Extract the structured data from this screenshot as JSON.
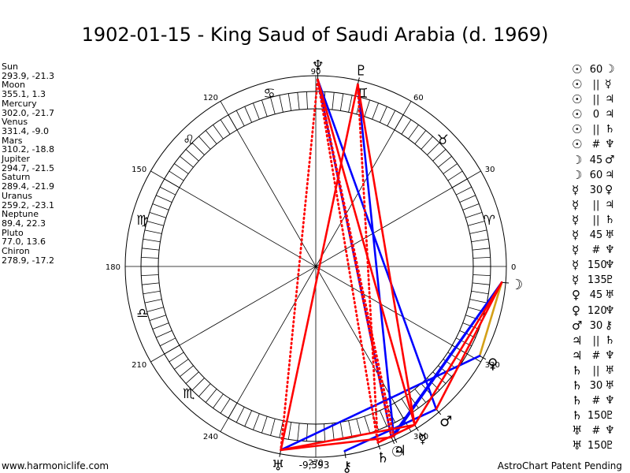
{
  "title": "1902-01-15 - King Saud of Saudi Arabia (d. 1969)",
  "footer_left": "www.harmoniclife.com",
  "footer_right": "AstroChart Patent Pending",
  "planets": [
    {
      "name": "Sun",
      "coords": "293.9, -21.3"
    },
    {
      "name": "Moon",
      "coords": "355.1, 1.3"
    },
    {
      "name": "Mercury",
      "coords": "302.0, -21.7"
    },
    {
      "name": "Venus",
      "coords": "331.4, -9.0"
    },
    {
      "name": "Mars",
      "coords": "310.2, -18.8"
    },
    {
      "name": "Jupiter",
      "coords": "294.7, -21.5"
    },
    {
      "name": "Saturn",
      "coords": "289.4, -21.9"
    },
    {
      "name": "Uranus",
      "coords": "259.2, -23.1"
    },
    {
      "name": "Neptune",
      "coords": "89.4, 22.3"
    },
    {
      "name": "Pluto",
      "coords": "77.0, 13.6"
    },
    {
      "name": "Chiron",
      "coords": "278.9, -17.2"
    }
  ],
  "aspects": [
    {
      "p1": "☉",
      "sym": "60",
      "p2": "☽"
    },
    {
      "p1": "☉",
      "sym": "||",
      "p2": "☿"
    },
    {
      "p1": "☉",
      "sym": "||",
      "p2": "♃"
    },
    {
      "p1": "☉",
      "sym": "0",
      "p2": "♃"
    },
    {
      "p1": "☉",
      "sym": "||",
      "p2": "♄"
    },
    {
      "p1": "☉",
      "sym": "#",
      "p2": "♆"
    },
    {
      "p1": "☽",
      "sym": "45",
      "p2": "♂"
    },
    {
      "p1": "☽",
      "sym": "60",
      "p2": "♃"
    },
    {
      "p1": "☿",
      "sym": "30",
      "p2": "♀"
    },
    {
      "p1": "☿",
      "sym": "||",
      "p2": "♃"
    },
    {
      "p1": "☿",
      "sym": "||",
      "p2": "♄"
    },
    {
      "p1": "☿",
      "sym": "45",
      "p2": "♅"
    },
    {
      "p1": "☿",
      "sym": "#",
      "p2": "♆"
    },
    {
      "p1": "☿",
      "sym": "150",
      "p2": "♆"
    },
    {
      "p1": "☿",
      "sym": "135",
      "p2": "♇"
    },
    {
      "p1": "♀",
      "sym": "45",
      "p2": "♅"
    },
    {
      "p1": "♀",
      "sym": "120",
      "p2": "♆"
    },
    {
      "p1": "♂",
      "sym": "30",
      "p2": "⚷"
    },
    {
      "p1": "♃",
      "sym": "||",
      "p2": "♄"
    },
    {
      "p1": "♃",
      "sym": "#",
      "p2": "♆"
    },
    {
      "p1": "♄",
      "sym": "||",
      "p2": "♅"
    },
    {
      "p1": "♄",
      "sym": "30",
      "p2": "♅"
    },
    {
      "p1": "♄",
      "sym": "#",
      "p2": "♆"
    },
    {
      "p1": "♄",
      "sym": "150",
      "p2": "♇"
    },
    {
      "p1": "♅",
      "sym": "#",
      "p2": "♆"
    },
    {
      "p1": "♅",
      "sym": "150",
      "p2": "♇"
    }
  ],
  "chart_data": {
    "type": "astrological-wheel",
    "title": "1902-01-15 - King Saud of Saudi Arabia (d. 1969)",
    "declination_value_label": "-9,593",
    "angle_labels": [
      {
        "deg": 0,
        "label": "0"
      },
      {
        "deg": 30,
        "label": "30"
      },
      {
        "deg": 60,
        "label": "60"
      },
      {
        "deg": 90,
        "label": "90"
      },
      {
        "deg": 120,
        "label": "120"
      },
      {
        "deg": 150,
        "label": "150"
      },
      {
        "deg": 180,
        "label": "180"
      },
      {
        "deg": 210,
        "label": "210"
      },
      {
        "deg": 240,
        "label": "240"
      },
      {
        "deg": 270,
        "label": "270"
      },
      {
        "deg": 300,
        "label": "300"
      },
      {
        "deg": 330,
        "label": "330"
      }
    ],
    "signs": [
      {
        "deg": 15,
        "glyph": "♈"
      },
      {
        "deg": 45,
        "glyph": "♉"
      },
      {
        "deg": 75,
        "glyph": "♊"
      },
      {
        "deg": 105,
        "glyph": "♋"
      },
      {
        "deg": 135,
        "glyph": "♌"
      },
      {
        "deg": 165,
        "glyph": "♍"
      },
      {
        "deg": 195,
        "glyph": "♎"
      },
      {
        "deg": 225,
        "glyph": "♏"
      }
    ],
    "bodies": [
      {
        "name": "Sun",
        "glyph": "☉",
        "lon": 293.9
      },
      {
        "name": "Moon",
        "glyph": "☽",
        "lon": 355.1
      },
      {
        "name": "Mercury",
        "glyph": "☿",
        "lon": 302.0
      },
      {
        "name": "Venus",
        "glyph": "♀",
        "lon": 331.4
      },
      {
        "name": "Mars",
        "glyph": "♂",
        "lon": 310.2
      },
      {
        "name": "Jupiter",
        "glyph": "♃",
        "lon": 294.7
      },
      {
        "name": "Saturn",
        "glyph": "♄",
        "lon": 289.4
      },
      {
        "name": "Uranus",
        "glyph": "♅",
        "lon": 259.2
      },
      {
        "name": "Neptune",
        "glyph": "♆",
        "lon": 89.4
      },
      {
        "name": "Pluto",
        "glyph": "♇",
        "lon": 77.0
      },
      {
        "name": "Chiron",
        "glyph": "⚷",
        "lon": 278.9
      }
    ],
    "aspect_lines": [
      {
        "from": "Moon",
        "to": "Venus",
        "color": "#d4a017",
        "style": "solid"
      },
      {
        "from": "Neptune",
        "to": "Sun",
        "color": "#0000ff",
        "style": "solid"
      },
      {
        "from": "Pluto",
        "to": "Jupiter",
        "color": "#0000ff",
        "style": "solid"
      },
      {
        "from": "Neptune",
        "to": "Mars",
        "color": "#0000ff",
        "style": "solid"
      },
      {
        "from": "Moon",
        "to": "Sun",
        "color": "#0000ff",
        "style": "solid"
      },
      {
        "from": "Moon",
        "to": "Jupiter",
        "color": "#0000ff",
        "style": "solid"
      },
      {
        "from": "Mars",
        "to": "Chiron",
        "color": "#0000ff",
        "style": "solid"
      },
      {
        "from": "Venus",
        "to": "Uranus",
        "color": "#0000ff",
        "style": "solid"
      },
      {
        "from": "Pluto",
        "to": "Mercury",
        "color": "#ff0000",
        "style": "solid"
      },
      {
        "from": "Pluto",
        "to": "Uranus",
        "color": "#ff0000",
        "style": "solid"
      },
      {
        "from": "Neptune",
        "to": "Mercury",
        "color": "#ff0000",
        "style": "solid"
      },
      {
        "from": "Uranus",
        "to": "Mercury",
        "color": "#ff0000",
        "style": "solid"
      },
      {
        "from": "Uranus",
        "to": "Sun",
        "color": "#ff0000",
        "style": "solid"
      },
      {
        "from": "Moon",
        "to": "Mars",
        "color": "#ff0000",
        "style": "solid"
      },
      {
        "from": "Mercury",
        "to": "Moon",
        "color": "#ff0000",
        "style": "solid"
      },
      {
        "from": "Saturn",
        "to": "Mercury",
        "color": "#ff0000",
        "style": "solid"
      },
      {
        "from": "Neptune",
        "to": "Saturn",
        "color": "#ff0000",
        "style": "dotted"
      },
      {
        "from": "Neptune",
        "to": "Jupiter",
        "color": "#ff0000",
        "style": "dotted"
      },
      {
        "from": "Neptune",
        "to": "Uranus",
        "color": "#ff0000",
        "style": "dotted"
      },
      {
        "from": "Neptune",
        "to": "Sun",
        "color": "#ff0000",
        "style": "dotted"
      },
      {
        "from": "Pluto",
        "to": "Saturn",
        "color": "#ff0000",
        "style": "dotted"
      }
    ]
  }
}
